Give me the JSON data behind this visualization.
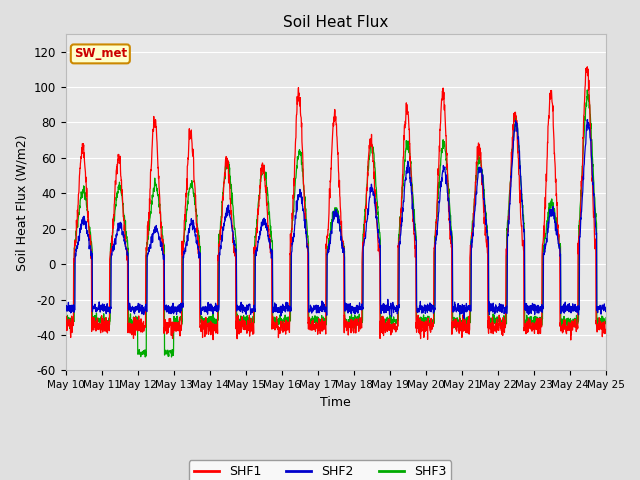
{
  "title": "Soil Heat Flux",
  "xlabel": "Time",
  "ylabel": "Soil Heat Flux (W/m2)",
  "ylim": [
    -60,
    130
  ],
  "yticks": [
    -60,
    -40,
    -20,
    0,
    20,
    40,
    60,
    80,
    100,
    120
  ],
  "xtick_labels": [
    "May 10",
    "May 11",
    "May 12",
    "May 13",
    "May 14",
    "May 15",
    "May 16",
    "May 17",
    "May 18",
    "May 19",
    "May 20",
    "May 21",
    "May 22",
    "May 23",
    "May 24",
    "May 25"
  ],
  "colors": {
    "SHF1": "#ff0000",
    "SHF2": "#0000cc",
    "SHF3": "#00aa00"
  },
  "legend_label": "SW_met",
  "legend_bg": "#ffffcc",
  "legend_edge": "#cc8800",
  "legend_text_color": "#cc0000",
  "bg_color": "#e0e0e0",
  "plot_bg": "#e8e8e8",
  "n_days": 15,
  "pts_per_day": 144,
  "shf1_amps": [
    67,
    60,
    82,
    74,
    58,
    56,
    96,
    85,
    70,
    88,
    97,
    66,
    86,
    96,
    111
  ],
  "shf2_amps": [
    25,
    22,
    20,
    23,
    31,
    25,
    40,
    29,
    43,
    55,
    55,
    55,
    80,
    30,
    80
  ],
  "shf3_amps": [
    42,
    43,
    45,
    45,
    57,
    55,
    63,
    31,
    67,
    68,
    68,
    60,
    80,
    35,
    95
  ],
  "shf2_night": -25,
  "shf3_night": -32,
  "shf1_night": -35
}
